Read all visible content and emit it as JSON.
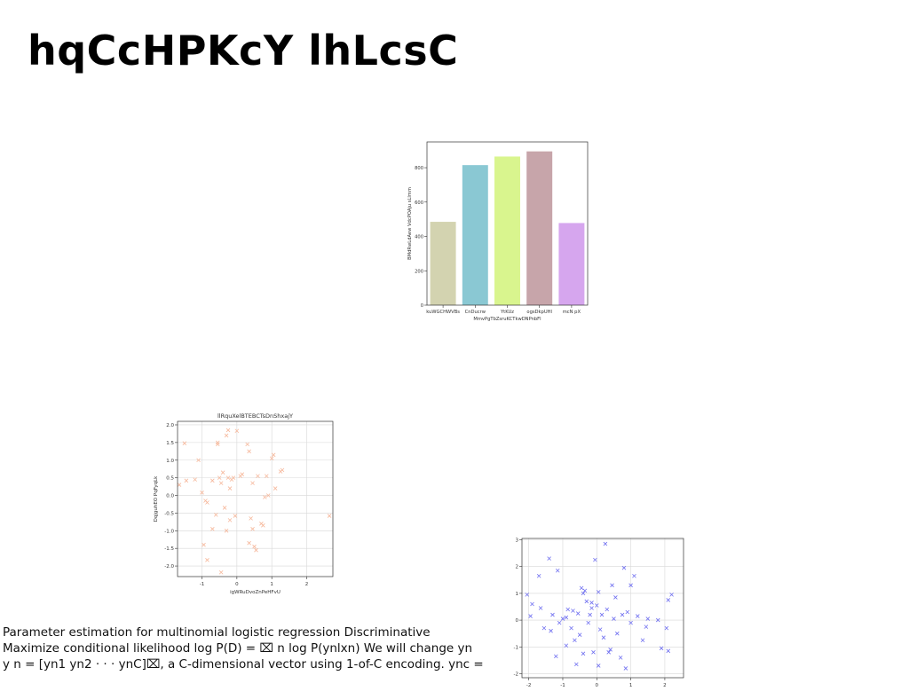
{
  "slide": {
    "title": "hqCcHPKcY lhLcsC",
    "paragraph": [
      "Parameter estimation for multinomial logistic regression Discriminative",
      "Maximize conditional likelihood log P(D) = ⌧ n log P(ynlxn) We will change yn",
      "y n = [yn1 yn2 · · · ynC]⌧, a C-dimensional vector using 1-of-C encoding. ync ="
    ]
  },
  "chart_data": [
    {
      "type": "bar",
      "title": "",
      "xlabel": "MmvPgTbZsruKCTkwDNPnbFl",
      "ylabel": "BMdRwLdAew VdcPOAju sLlmm",
      "categories": [
        "kuWGCHWVBs",
        "CnDucrw",
        "YtKUz",
        "ogsDkpUHl",
        "mcN pX"
      ],
      "values": [
        485,
        815,
        865,
        895,
        478
      ],
      "colors": [
        "#d3d3b0",
        "#8ac8d3",
        "#d9f58e",
        "#c7a5aa",
        "#d6a6ee"
      ],
      "ylim": [
        0,
        950
      ],
      "yticks": [
        0,
        200,
        400,
        600,
        800
      ],
      "grid": false
    },
    {
      "type": "scatter",
      "title": "llRquXelBTEBCTsDnShxajY",
      "xlabel": "igWRuDvoZnPeHFvU",
      "ylabel": "DqjguhEO PqFyqLk",
      "marker": "x",
      "color": "#f6b79a",
      "xlim": [
        -1.7,
        2.75
      ],
      "ylim": [
        -2.3,
        2.1
      ],
      "xticks": [
        -1,
        0,
        1,
        2
      ],
      "yticks": [
        -2.0,
        -1.5,
        -1.0,
        -0.5,
        0.0,
        0.5,
        1.0,
        1.5,
        2.0
      ],
      "grid": true,
      "points": [
        [
          -1.5,
          1.48
        ],
        [
          -1.2,
          0.45
        ],
        [
          -1.45,
          0.42
        ],
        [
          -1.1,
          1.0
        ],
        [
          -1.0,
          0.08
        ],
        [
          -0.9,
          -0.15
        ],
        [
          -0.85,
          -0.2
        ],
        [
          -0.95,
          -1.4
        ],
        [
          -0.85,
          -1.83
        ],
        [
          -0.7,
          0.42
        ],
        [
          -0.6,
          -0.55
        ],
        [
          -0.55,
          1.45
        ],
        [
          -0.55,
          1.5
        ],
        [
          -0.5,
          0.5
        ],
        [
          -0.45,
          0.35
        ],
        [
          -0.4,
          0.65
        ],
        [
          -0.35,
          -0.35
        ],
        [
          -0.3,
          1.7
        ],
        [
          -0.25,
          1.85
        ],
        [
          -0.3,
          -1.0
        ],
        [
          -0.25,
          0.5
        ],
        [
          -0.2,
          0.2
        ],
        [
          -0.15,
          0.45
        ],
        [
          -0.1,
          0.5
        ],
        [
          -0.05,
          -0.58
        ],
        [
          0.0,
          1.83
        ],
        [
          0.1,
          0.55
        ],
        [
          0.15,
          0.6
        ],
        [
          -0.45,
          -2.18
        ],
        [
          -0.7,
          -0.95
        ],
        [
          0.3,
          1.45
        ],
        [
          0.35,
          1.25
        ],
        [
          0.4,
          -0.65
        ],
        [
          0.45,
          0.35
        ],
        [
          0.5,
          -1.45
        ],
        [
          0.6,
          0.55
        ],
        [
          0.7,
          -0.8
        ],
        [
          0.75,
          -0.85
        ],
        [
          0.8,
          -0.05
        ],
        [
          0.9,
          0.0
        ],
        [
          1.0,
          1.05
        ],
        [
          1.05,
          1.15
        ],
        [
          1.1,
          0.2
        ],
        [
          1.25,
          0.68
        ],
        [
          1.3,
          0.72
        ],
        [
          0.35,
          -1.35
        ],
        [
          0.55,
          -1.55
        ],
        [
          0.45,
          -0.95
        ],
        [
          -0.2,
          -0.7
        ],
        [
          2.65,
          -0.58
        ],
        [
          -1.65,
          0.3
        ],
        [
          0.85,
          0.55
        ]
      ]
    },
    {
      "type": "scatter",
      "title": "",
      "xlabel": "",
      "ylabel": "",
      "marker": "x",
      "color": "#6f6ff0",
      "xlim": [
        -2.2,
        2.55
      ],
      "ylim": [
        -2.15,
        3.05
      ],
      "xticks": [
        -2,
        -1,
        0,
        1,
        2
      ],
      "yticks": [
        -2,
        -1,
        0,
        1,
        2,
        3
      ],
      "grid": true,
      "points": [
        [
          -2.05,
          0.95
        ],
        [
          -1.95,
          0.15
        ],
        [
          -1.9,
          0.6
        ],
        [
          -1.7,
          1.65
        ],
        [
          -1.65,
          0.45
        ],
        [
          -1.55,
          -0.3
        ],
        [
          -1.4,
          2.3
        ],
        [
          -1.35,
          -0.4
        ],
        [
          -1.3,
          0.2
        ],
        [
          -1.2,
          -1.35
        ],
        [
          -1.15,
          1.85
        ],
        [
          -1.1,
          -0.1
        ],
        [
          -1.0,
          0.05
        ],
        [
          -0.9,
          0.1
        ],
        [
          -0.85,
          0.4
        ],
        [
          -0.75,
          -0.3
        ],
        [
          -0.7,
          0.35
        ],
        [
          -0.65,
          -0.75
        ],
        [
          -0.6,
          -1.65
        ],
        [
          -0.55,
          0.25
        ],
        [
          -0.5,
          -0.55
        ],
        [
          -0.45,
          1.2
        ],
        [
          -0.4,
          1.0
        ],
        [
          -0.4,
          -1.25
        ],
        [
          -0.3,
          0.7
        ],
        [
          -0.25,
          -0.1
        ],
        [
          -0.2,
          0.2
        ],
        [
          -0.15,
          0.45
        ],
        [
          -0.1,
          -1.2
        ],
        [
          -0.05,
          2.25
        ],
        [
          0.0,
          0.55
        ],
        [
          0.05,
          1.05
        ],
        [
          0.1,
          -0.35
        ],
        [
          0.15,
          0.2
        ],
        [
          0.2,
          -0.65
        ],
        [
          0.25,
          2.85
        ],
        [
          0.3,
          0.4
        ],
        [
          0.4,
          -1.1
        ],
        [
          0.45,
          1.3
        ],
        [
          0.5,
          0.05
        ],
        [
          0.6,
          -0.5
        ],
        [
          0.7,
          -1.4
        ],
        [
          0.75,
          0.2
        ],
        [
          0.8,
          1.95
        ],
        [
          0.9,
          0.3
        ],
        [
          1.0,
          1.3
        ],
        [
          1.1,
          1.65
        ],
        [
          1.2,
          0.15
        ],
        [
          1.35,
          -0.75
        ],
        [
          1.45,
          -0.25
        ],
        [
          1.5,
          0.05
        ],
        [
          1.8,
          0.0
        ],
        [
          1.9,
          -1.05
        ],
        [
          2.05,
          -0.3
        ],
        [
          2.1,
          0.75
        ],
        [
          2.2,
          0.95
        ],
        [
          2.1,
          -1.15
        ],
        [
          -0.35,
          1.1
        ],
        [
          0.05,
          -1.7
        ],
        [
          0.55,
          0.85
        ],
        [
          1.0,
          -0.1
        ],
        [
          -0.9,
          -0.95
        ],
        [
          -0.15,
          0.65
        ],
        [
          0.35,
          -1.2
        ],
        [
          0.85,
          -1.8
        ]
      ]
    }
  ]
}
